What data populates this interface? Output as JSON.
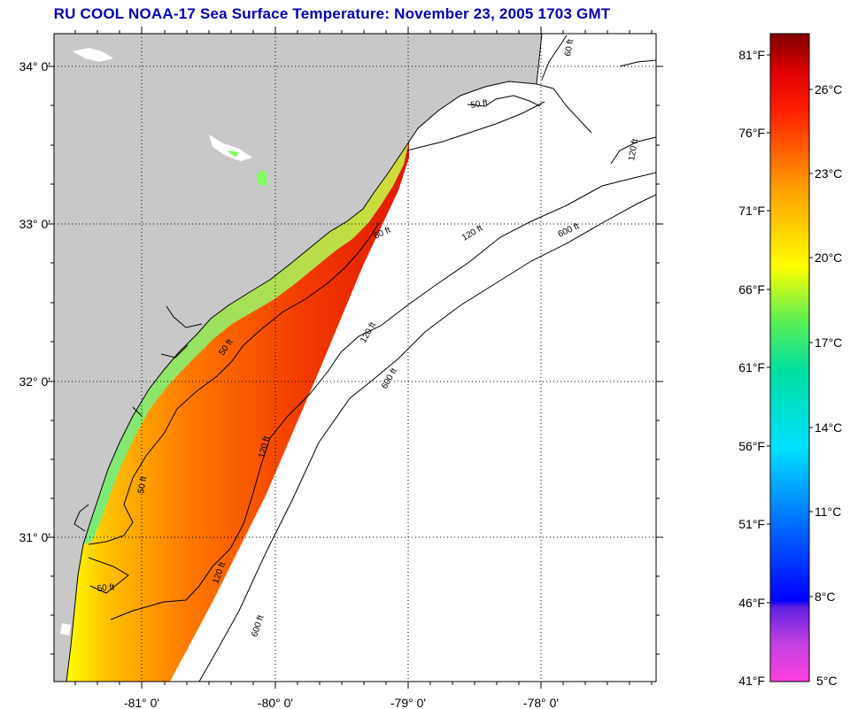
{
  "title": "RU COOL  NOAA-17  Sea Surface Temperature:  November 23, 2005 1703 GMT",
  "map": {
    "lon_labels": [
      "-81° 0'",
      "-80° 0'",
      "-79° 0'",
      "-78° 0'"
    ],
    "lat_labels": [
      "34° 0'",
      "33° 0'",
      "32° 0'",
      "31° 0'"
    ],
    "contour_labels": [
      "50 ft",
      "50 ft",
      "50 ft",
      "50 ft",
      "60 ft",
      "120 ft",
      "120 ft",
      "120 ft",
      "120 ft",
      "120 ft",
      "600 ft",
      "600 ft",
      "600 ft",
      "60 ft"
    ],
    "colors": {
      "land": "#c8c8c8",
      "no_data": "#ffffff",
      "contour": "#000000"
    }
  },
  "colorbar": {
    "fahrenheit_labels": [
      "81°F",
      "76°F",
      "71°F",
      "66°F",
      "61°F",
      "56°F",
      "51°F",
      "46°F",
      "41°F"
    ],
    "celsius_labels": [
      "26°C",
      "23°C",
      "20°C",
      "17°C",
      "14°C",
      "11°C",
      "8°C",
      "5°C"
    ],
    "colors": [
      "#ff40e0",
      "#8020e0",
      "#0000ff",
      "#00a0ff",
      "#00f0f0",
      "#00e080",
      "#80ff40",
      "#ffff00",
      "#ffb000",
      "#ff7000",
      "#ff2000",
      "#e00000",
      "#800000"
    ]
  }
}
